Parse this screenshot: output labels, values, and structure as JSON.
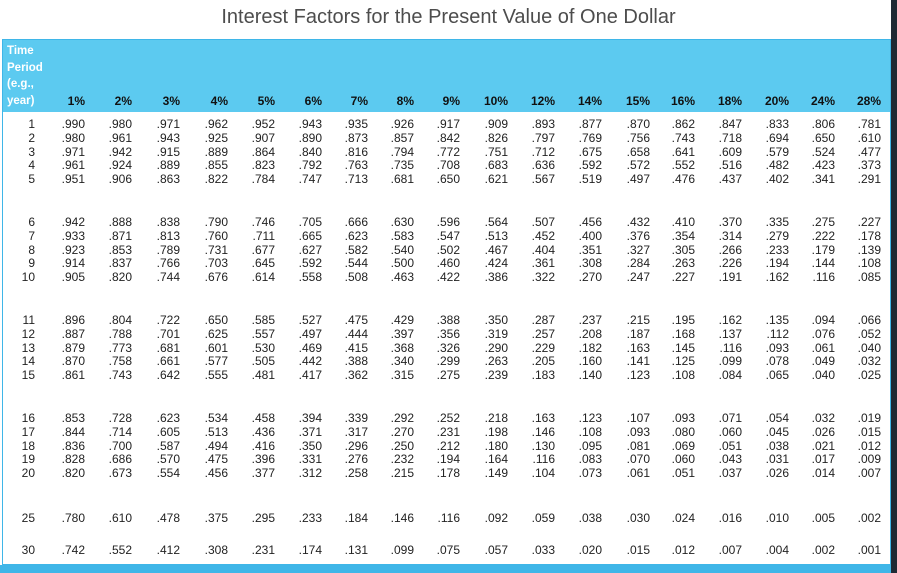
{
  "title": "Interest Factors for the Present Value of One Dollar",
  "colors": {
    "header_band": "#5ccaf0",
    "border": "#3fb6e8"
  },
  "column_header_lines": [
    "Time",
    "Period",
    "(e.g.,",
    "year)"
  ],
  "rates": [
    "1%",
    "2%",
    "3%",
    "4%",
    "5%",
    "6%",
    "7%",
    "8%",
    "9%",
    "10%",
    "12%",
    "14%",
    "15%",
    "16%",
    "18%",
    "20%",
    "24%",
    "28%"
  ],
  "groups": [
    [
      {
        "period": "1",
        "values": [
          ".990",
          ".980",
          ".971",
          ".962",
          ".952",
          ".943",
          ".935",
          ".926",
          ".917",
          ".909",
          ".893",
          ".877",
          ".870",
          ".862",
          ".847",
          ".833",
          ".806",
          ".781"
        ]
      },
      {
        "period": "2",
        "values": [
          ".980",
          ".961",
          ".943",
          ".925",
          ".907",
          ".890",
          ".873",
          ".857",
          ".842",
          ".826",
          ".797",
          ".769",
          ".756",
          ".743",
          ".718",
          ".694",
          ".650",
          ".610"
        ]
      },
      {
        "period": "3",
        "values": [
          ".971",
          ".942",
          ".915",
          ".889",
          ".864",
          ".840",
          ".816",
          ".794",
          ".772",
          ".751",
          ".712",
          ".675",
          ".658",
          ".641",
          ".609",
          ".579",
          ".524",
          ".477"
        ]
      },
      {
        "period": "4",
        "values": [
          ".961",
          ".924",
          ".889",
          ".855",
          ".823",
          ".792",
          ".763",
          ".735",
          ".708",
          ".683",
          ".636",
          ".592",
          ".572",
          ".552",
          ".516",
          ".482",
          ".423",
          ".373"
        ]
      },
      {
        "period": "5",
        "values": [
          ".951",
          ".906",
          ".863",
          ".822",
          ".784",
          ".747",
          ".713",
          ".681",
          ".650",
          ".621",
          ".567",
          ".519",
          ".497",
          ".476",
          ".437",
          ".402",
          ".341",
          ".291"
        ]
      }
    ],
    [
      {
        "period": "6",
        "values": [
          ".942",
          ".888",
          ".838",
          ".790",
          ".746",
          ".705",
          ".666",
          ".630",
          ".596",
          ".564",
          ".507",
          ".456",
          ".432",
          ".410",
          ".370",
          ".335",
          ".275",
          ".227"
        ]
      },
      {
        "period": "7",
        "values": [
          ".933",
          ".871",
          ".813",
          ".760",
          ".711",
          ".665",
          ".623",
          ".583",
          ".547",
          ".513",
          ".452",
          ".400",
          ".376",
          ".354",
          ".314",
          ".279",
          ".222",
          ".178"
        ]
      },
      {
        "period": "8",
        "values": [
          ".923",
          ".853",
          ".789",
          ".731",
          ".677",
          ".627",
          ".582",
          ".540",
          ".502",
          ".467",
          ".404",
          ".351",
          ".327",
          ".305",
          ".266",
          ".233",
          ".179",
          ".139"
        ]
      },
      {
        "period": "9",
        "values": [
          ".914",
          ".837",
          ".766",
          ".703",
          ".645",
          ".592",
          ".544",
          ".500",
          ".460",
          ".424",
          ".361",
          ".308",
          ".284",
          ".263",
          ".226",
          ".194",
          ".144",
          ".108"
        ]
      },
      {
        "period": "10",
        "values": [
          ".905",
          ".820",
          ".744",
          ".676",
          ".614",
          ".558",
          ".508",
          ".463",
          ".422",
          ".386",
          ".322",
          ".270",
          ".247",
          ".227",
          ".191",
          ".162",
          ".116",
          ".085"
        ]
      }
    ],
    [
      {
        "period": "11",
        "values": [
          ".896",
          ".804",
          ".722",
          ".650",
          ".585",
          ".527",
          ".475",
          ".429",
          ".388",
          ".350",
          ".287",
          ".237",
          ".215",
          ".195",
          ".162",
          ".135",
          ".094",
          ".066"
        ]
      },
      {
        "period": "12",
        "values": [
          ".887",
          ".788",
          ".701",
          ".625",
          ".557",
          ".497",
          ".444",
          ".397",
          ".356",
          ".319",
          ".257",
          ".208",
          ".187",
          ".168",
          ".137",
          ".112",
          ".076",
          ".052"
        ]
      },
      {
        "period": "13",
        "values": [
          ".879",
          ".773",
          ".681",
          ".601",
          ".530",
          ".469",
          ".415",
          ".368",
          ".326",
          ".290",
          ".229",
          ".182",
          ".163",
          ".145",
          ".116",
          ".093",
          ".061",
          ".040"
        ]
      },
      {
        "period": "14",
        "values": [
          ".870",
          ".758",
          ".661",
          ".577",
          ".505",
          ".442",
          ".388",
          ".340",
          ".299",
          ".263",
          ".205",
          ".160",
          ".141",
          ".125",
          ".099",
          ".078",
          ".049",
          ".032"
        ]
      },
      {
        "period": "15",
        "values": [
          ".861",
          ".743",
          ".642",
          ".555",
          ".481",
          ".417",
          ".362",
          ".315",
          ".275",
          ".239",
          ".183",
          ".140",
          ".123",
          ".108",
          ".084",
          ".065",
          ".040",
          ".025"
        ]
      }
    ],
    [
      {
        "period": "16",
        "values": [
          ".853",
          ".728",
          ".623",
          ".534",
          ".458",
          ".394",
          ".339",
          ".292",
          ".252",
          ".218",
          ".163",
          ".123",
          ".107",
          ".093",
          ".071",
          ".054",
          ".032",
          ".019"
        ]
      },
      {
        "period": "17",
        "values": [
          ".844",
          ".714",
          ".605",
          ".513",
          ".436",
          ".371",
          ".317",
          ".270",
          ".231",
          ".198",
          ".146",
          ".108",
          ".093",
          ".080",
          ".060",
          ".045",
          ".026",
          ".015"
        ]
      },
      {
        "period": "18",
        "values": [
          ".836",
          ".700",
          ".587",
          ".494",
          ".416",
          ".350",
          ".296",
          ".250",
          ".212",
          ".180",
          ".130",
          ".095",
          ".081",
          ".069",
          ".051",
          ".038",
          ".021",
          ".012"
        ]
      },
      {
        "period": "19",
        "values": [
          ".828",
          ".686",
          ".570",
          ".475",
          ".396",
          ".331",
          ".276",
          ".232",
          ".194",
          ".164",
          ".116",
          ".083",
          ".070",
          ".060",
          ".043",
          ".031",
          ".017",
          ".009"
        ]
      },
      {
        "period": "20",
        "values": [
          ".820",
          ".673",
          ".554",
          ".456",
          ".377",
          ".312",
          ".258",
          ".215",
          ".178",
          ".149",
          ".104",
          ".073",
          ".061",
          ".051",
          ".037",
          ".026",
          ".014",
          ".007"
        ]
      }
    ],
    [
      {
        "period": "25",
        "values": [
          ".780",
          ".610",
          ".478",
          ".375",
          ".295",
          ".233",
          ".184",
          ".146",
          ".116",
          ".092",
          ".059",
          ".038",
          ".030",
          ".024",
          ".016",
          ".010",
          ".005",
          ".002"
        ]
      }
    ],
    [
      {
        "period": "30",
        "values": [
          ".742",
          ".552",
          ".412",
          ".308",
          ".231",
          ".174",
          ".131",
          ".099",
          ".075",
          ".057",
          ".033",
          ".020",
          ".015",
          ".012",
          ".007",
          ".004",
          ".002",
          ".001"
        ]
      }
    ]
  ]
}
